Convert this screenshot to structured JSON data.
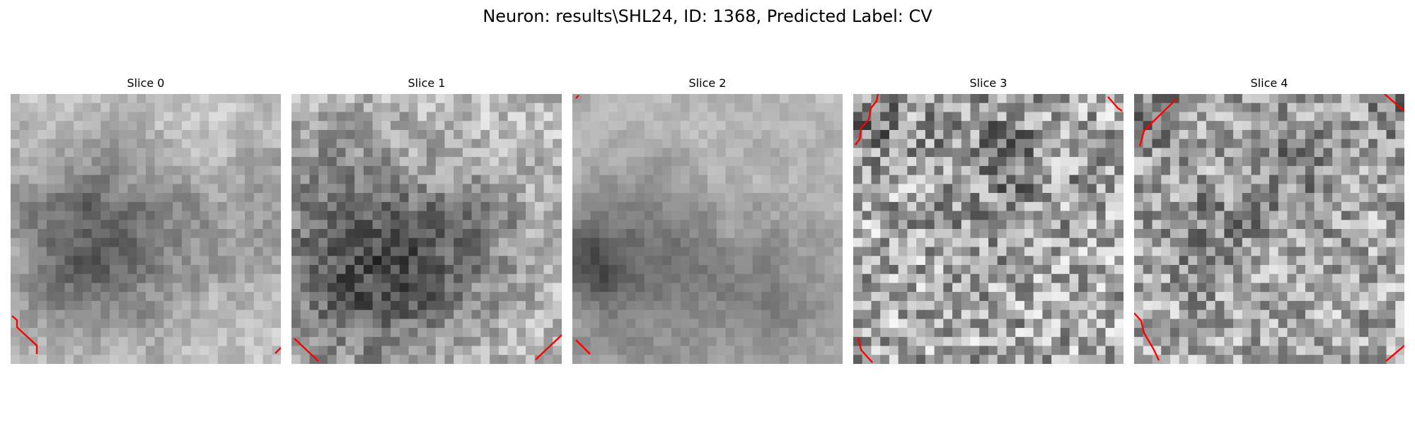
{
  "figure": {
    "title": "Neuron: results\\SHL24, ID: 1368, Predicted Label: CV"
  },
  "panels": [
    {
      "title": "Slice 0",
      "colormap": "grayscale",
      "contour_color": "#ff0000"
    },
    {
      "title": "Slice 1",
      "colormap": "grayscale",
      "contour_color": "#ff0000"
    },
    {
      "title": "Slice 2",
      "colormap": "grayscale",
      "contour_color": "#ff0000"
    },
    {
      "title": "Slice 3",
      "colormap": "grayscale",
      "contour_color": "#ff0000"
    },
    {
      "title": "Slice 4",
      "colormap": "grayscale",
      "contour_color": "#ff0000"
    }
  ]
}
